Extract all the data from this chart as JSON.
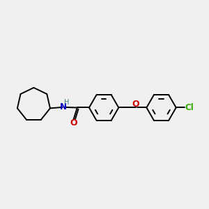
{
  "background_color": "#f0f0f0",
  "bond_color": "#000000",
  "N_color": "#0000cc",
  "H_color": "#3a8080",
  "O_color": "#cc0000",
  "Cl_color": "#33aa00",
  "figsize": [
    3.0,
    3.0
  ],
  "dpi": 100,
  "xlim": [
    0,
    10
  ],
  "ylim": [
    2,
    8
  ],
  "lw": 1.4
}
